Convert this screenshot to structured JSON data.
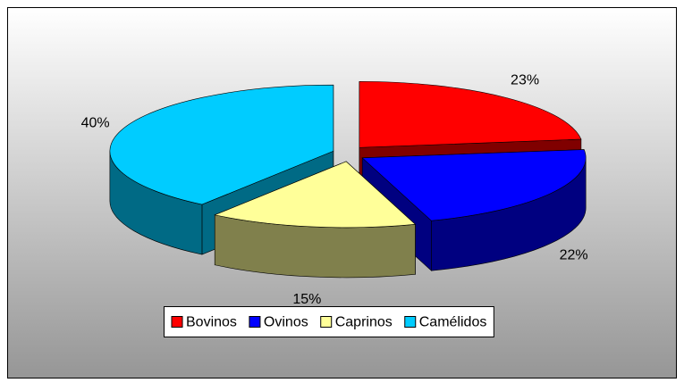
{
  "chart_data": {
    "type": "pie3d",
    "categories": [
      "Bovinos",
      "Ovinos",
      "Caprinos",
      "Camélidos"
    ],
    "values": [
      23,
      22,
      15,
      40
    ],
    "value_labels": [
      "23%",
      "22%",
      "15%",
      "40%"
    ],
    "colors": [
      "#ff0000",
      "#0000ff",
      "#ffff99",
      "#00ccff"
    ],
    "side_colors": [
      "#800000",
      "#000080",
      "#80804c",
      "#006a85"
    ],
    "legend": "bottom"
  }
}
